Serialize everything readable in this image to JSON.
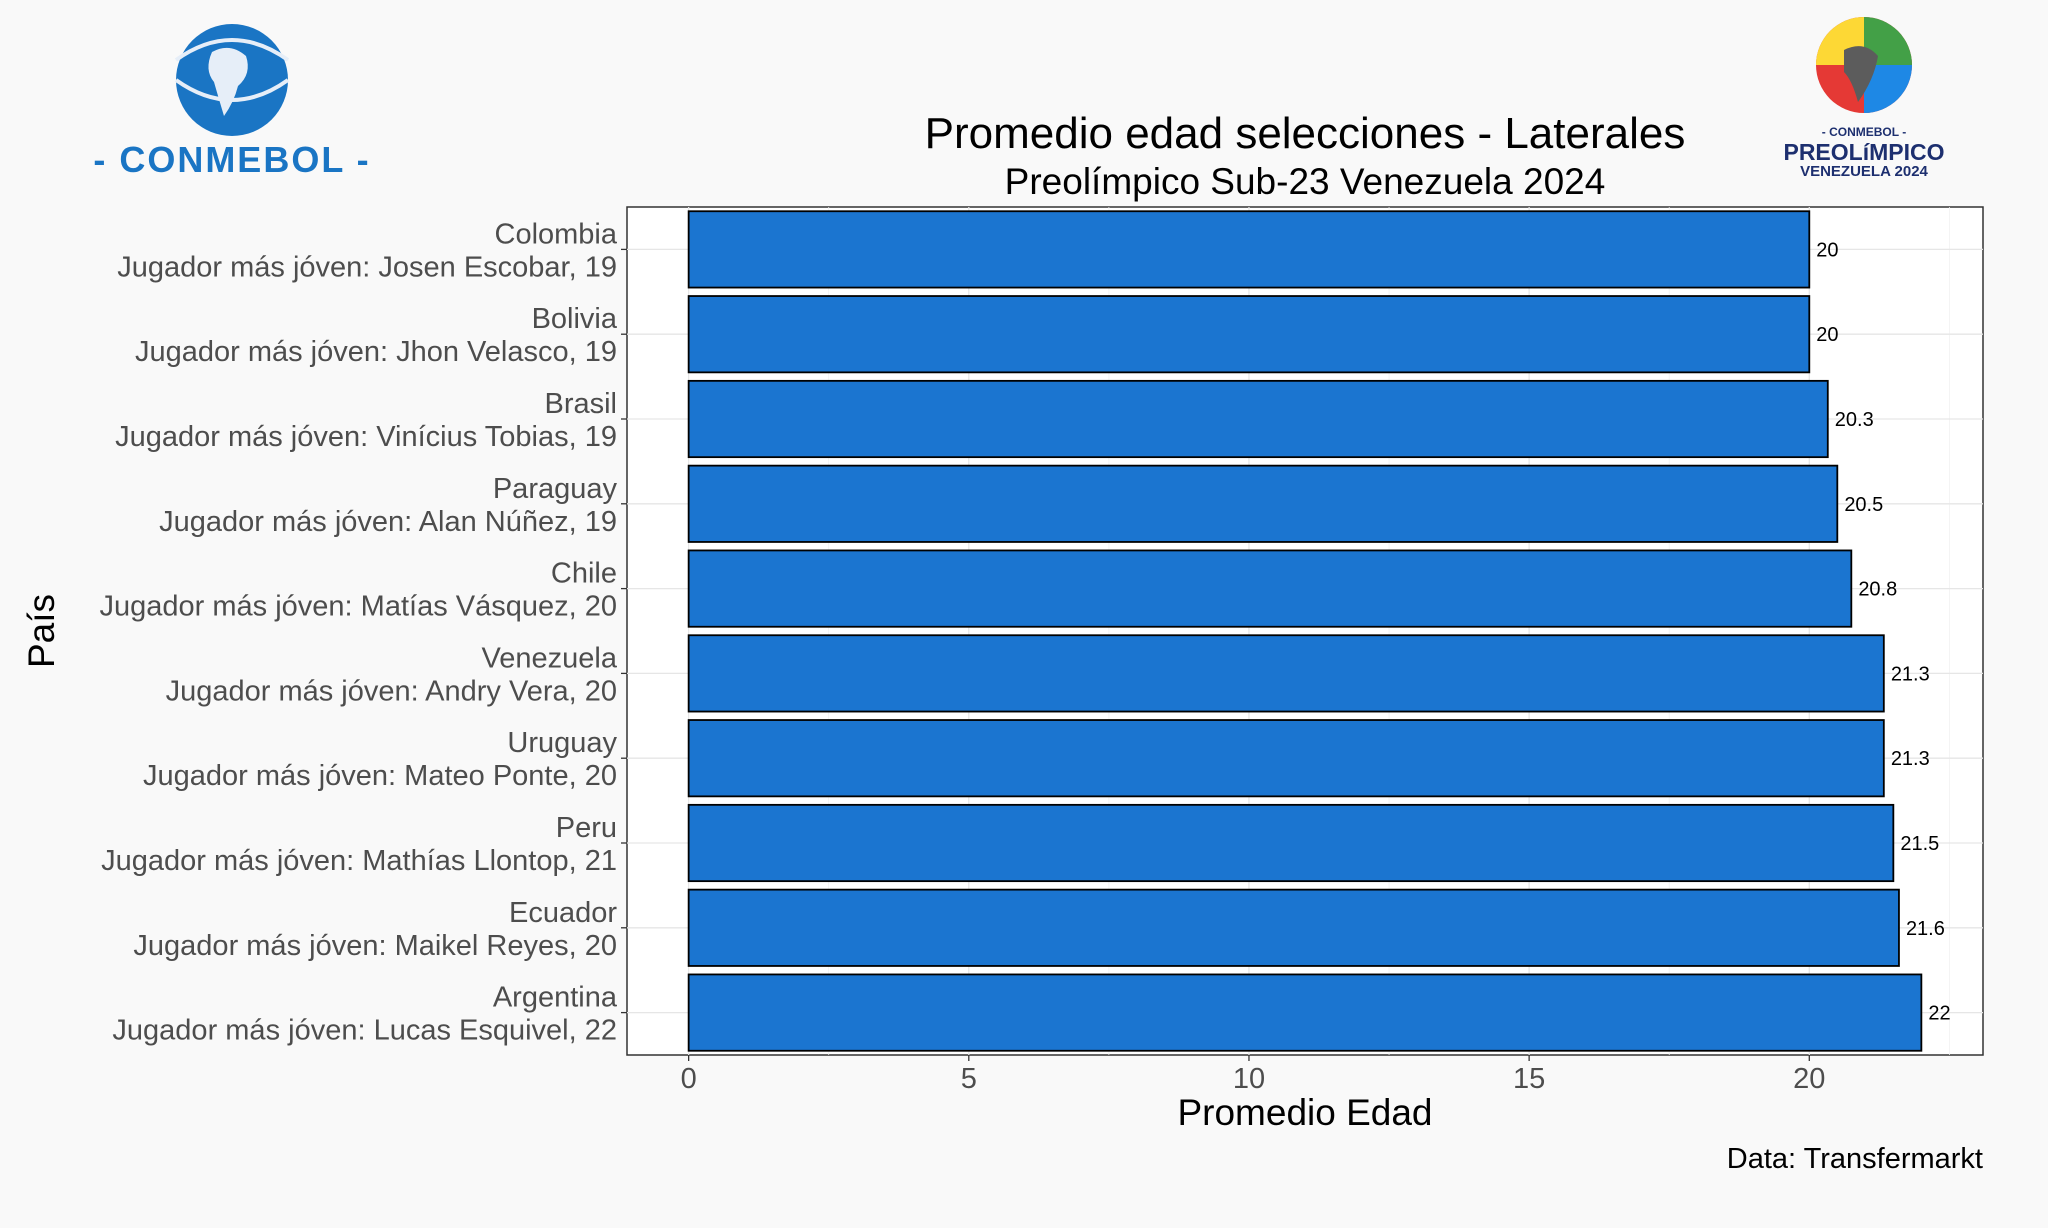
{
  "chart_data": {
    "type": "bar",
    "orientation": "horizontal",
    "title": "Promedio edad selecciones - Laterales",
    "subtitle": "Preolímpico Sub-23 Venezuela 2024",
    "xlabel": "Promedio Edad",
    "ylabel": "País",
    "caption": "Data: Transfermarkt",
    "xlim": [
      -1.1,
      23.1
    ],
    "xticks": [
      0,
      5,
      10,
      15,
      20
    ],
    "grid": true,
    "bar_color": "#1b75d0",
    "categories": [
      {
        "country": "Colombia",
        "detail": "Jugador más jóven: Josen Escobar, 19"
      },
      {
        "country": "Bolivia",
        "detail": "Jugador más jóven: Jhon Velasco, 19"
      },
      {
        "country": "Brasil",
        "detail": "Jugador más jóven: Vinícius Tobias, 19"
      },
      {
        "country": "Paraguay",
        "detail": "Jugador más jóven: Alan Núñez, 19"
      },
      {
        "country": "Chile",
        "detail": "Jugador más jóven: Matías Vásquez, 20"
      },
      {
        "country": "Venezuela",
        "detail": "Jugador más jóven: Andry Vera, 20"
      },
      {
        "country": "Uruguay",
        "detail": "Jugador más jóven: Mateo Ponte, 20"
      },
      {
        "country": "Peru",
        "detail": "Jugador más jóven: Mathías Llontop, 21"
      },
      {
        "country": "Ecuador",
        "detail": "Jugador más jóven: Maikel Reyes, 20"
      },
      {
        "country": "Argentina",
        "detail": "Jugador más jóven: Lucas Esquivel, 22"
      }
    ],
    "values": [
      20.0,
      20.0,
      20.33,
      20.5,
      20.75,
      21.33,
      21.33,
      21.5,
      21.6,
      22.0
    ],
    "value_labels": [
      "20",
      "20",
      "20.3",
      "20.5",
      "20.8",
      "21.3",
      "21.3",
      "21.5",
      "21.6",
      "22"
    ]
  },
  "logos": {
    "left": {
      "text": "- CONMEBOL -"
    },
    "right": {
      "line1": "- CONMEBOL -",
      "line2": "PREOLíMPICO",
      "line3": "VENEZUELA 2024"
    }
  }
}
